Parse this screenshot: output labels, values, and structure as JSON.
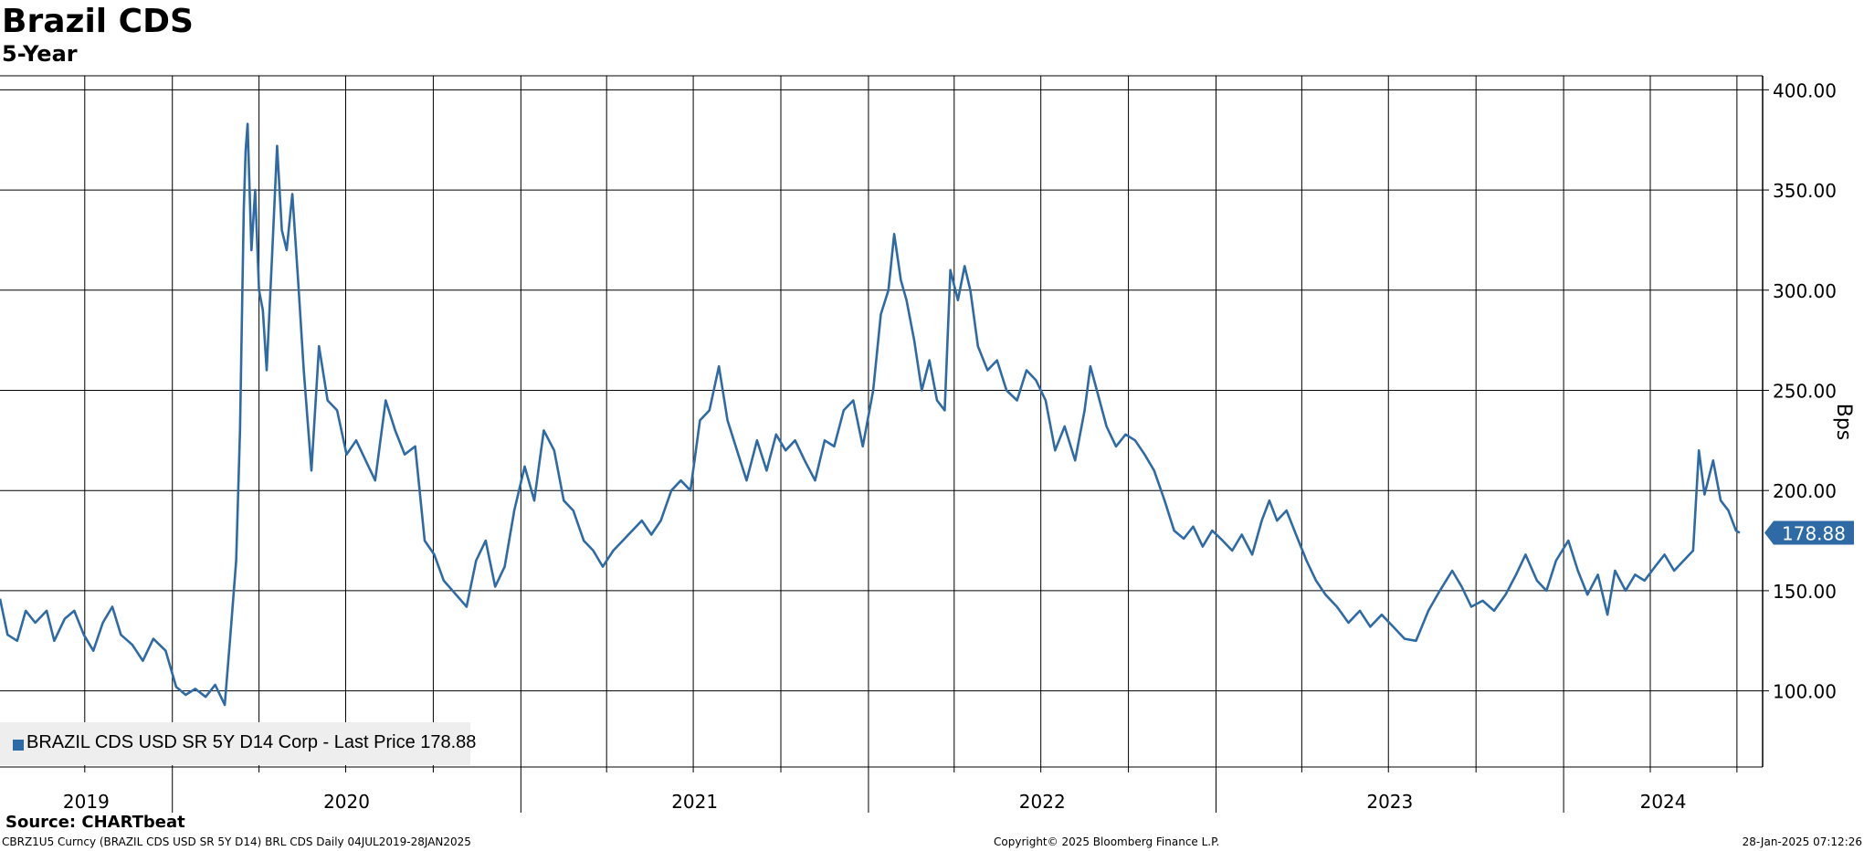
{
  "chart_data": {
    "type": "line",
    "title": "Brazil CDS",
    "subtitle": "5-Year",
    "ylabel": "Bps",
    "ylim": [
      62,
      407
    ],
    "y_ticks": [
      "100.00",
      "150.00",
      "200.00",
      "250.00",
      "300.00",
      "350.00",
      "400.00"
    ],
    "x_ticks": [
      "2019",
      "2020",
      "2021",
      "2022",
      "2023",
      "2024"
    ],
    "grid": true,
    "legend_position": "bottom-left",
    "series": [
      {
        "name": "BRAZIL CDS USD SR 5Y D14 Corp",
        "color": "#2e6aa6",
        "last_price": "178.88",
        "points": [
          [
            "2019-07-04",
            146
          ],
          [
            "2019-07-12",
            128
          ],
          [
            "2019-07-22",
            125
          ],
          [
            "2019-07-31",
            140
          ],
          [
            "2019-08-10",
            134
          ],
          [
            "2019-08-22",
            140
          ],
          [
            "2019-08-30",
            125
          ],
          [
            "2019-09-10",
            136
          ],
          [
            "2019-09-20",
            140
          ],
          [
            "2019-09-30",
            128
          ],
          [
            "2019-10-10",
            120
          ],
          [
            "2019-10-20",
            134
          ],
          [
            "2019-10-30",
            142
          ],
          [
            "2019-11-08",
            128
          ],
          [
            "2019-11-20",
            123
          ],
          [
            "2019-12-01",
            115
          ],
          [
            "2019-12-12",
            126
          ],
          [
            "2019-12-25",
            120
          ],
          [
            "2020-01-05",
            102
          ],
          [
            "2020-01-15",
            98
          ],
          [
            "2020-01-25",
            101
          ],
          [
            "2020-02-05",
            97
          ],
          [
            "2020-02-15",
            103
          ],
          [
            "2020-02-25",
            93
          ],
          [
            "2020-03-02",
            128
          ],
          [
            "2020-03-08",
            165
          ],
          [
            "2020-03-12",
            230
          ],
          [
            "2020-03-16",
            340
          ],
          [
            "2020-03-18",
            370
          ],
          [
            "2020-03-20",
            383
          ],
          [
            "2020-03-24",
            320
          ],
          [
            "2020-03-28",
            350
          ],
          [
            "2020-04-01",
            300
          ],
          [
            "2020-04-05",
            290
          ],
          [
            "2020-04-09",
            260
          ],
          [
            "2020-04-15",
            320
          ],
          [
            "2020-04-20",
            372
          ],
          [
            "2020-04-25",
            330
          ],
          [
            "2020-04-30",
            320
          ],
          [
            "2020-05-06",
            348
          ],
          [
            "2020-05-12",
            305
          ],
          [
            "2020-05-18",
            260
          ],
          [
            "2020-05-26",
            210
          ],
          [
            "2020-06-03",
            272
          ],
          [
            "2020-06-12",
            245
          ],
          [
            "2020-06-22",
            240
          ],
          [
            "2020-07-02",
            218
          ],
          [
            "2020-07-12",
            225
          ],
          [
            "2020-07-22",
            215
          ],
          [
            "2020-08-01",
            205
          ],
          [
            "2020-08-12",
            245
          ],
          [
            "2020-08-22",
            230
          ],
          [
            "2020-09-01",
            218
          ],
          [
            "2020-09-12",
            222
          ],
          [
            "2020-09-22",
            175
          ],
          [
            "2020-10-02",
            168
          ],
          [
            "2020-10-12",
            155
          ],
          [
            "2020-10-25",
            148
          ],
          [
            "2020-11-05",
            142
          ],
          [
            "2020-11-15",
            165
          ],
          [
            "2020-11-25",
            175
          ],
          [
            "2020-12-05",
            152
          ],
          [
            "2020-12-15",
            162
          ],
          [
            "2020-12-25",
            190
          ],
          [
            "2021-01-05",
            212
          ],
          [
            "2021-01-15",
            195
          ],
          [
            "2021-01-25",
            230
          ],
          [
            "2021-02-05",
            220
          ],
          [
            "2021-02-15",
            195
          ],
          [
            "2021-02-25",
            190
          ],
          [
            "2021-03-08",
            175
          ],
          [
            "2021-03-18",
            170
          ],
          [
            "2021-03-28",
            162
          ],
          [
            "2021-04-08",
            170
          ],
          [
            "2021-04-18",
            175
          ],
          [
            "2021-04-28",
            180
          ],
          [
            "2021-05-08",
            185
          ],
          [
            "2021-05-18",
            178
          ],
          [
            "2021-05-28",
            185
          ],
          [
            "2021-06-08",
            200
          ],
          [
            "2021-06-18",
            205
          ],
          [
            "2021-06-28",
            200
          ],
          [
            "2021-07-08",
            235
          ],
          [
            "2021-07-18",
            240
          ],
          [
            "2021-07-28",
            262
          ],
          [
            "2021-08-06",
            235
          ],
          [
            "2021-08-16",
            220
          ],
          [
            "2021-08-26",
            205
          ],
          [
            "2021-09-06",
            225
          ],
          [
            "2021-09-16",
            210
          ],
          [
            "2021-09-26",
            228
          ],
          [
            "2021-10-06",
            220
          ],
          [
            "2021-10-16",
            225
          ],
          [
            "2021-10-26",
            215
          ],
          [
            "2021-11-06",
            205
          ],
          [
            "2021-11-16",
            225
          ],
          [
            "2021-11-26",
            222
          ],
          [
            "2021-12-06",
            240
          ],
          [
            "2021-12-16",
            245
          ],
          [
            "2021-12-26",
            222
          ],
          [
            "2022-01-06",
            250
          ],
          [
            "2022-01-14",
            288
          ],
          [
            "2022-01-22",
            300
          ],
          [
            "2022-01-28",
            328
          ],
          [
            "2022-02-04",
            305
          ],
          [
            "2022-02-10",
            295
          ],
          [
            "2022-02-18",
            275
          ],
          [
            "2022-02-26",
            250
          ],
          [
            "2022-03-06",
            265
          ],
          [
            "2022-03-14",
            245
          ],
          [
            "2022-03-22",
            240
          ],
          [
            "2022-03-28",
            310
          ],
          [
            "2022-04-05",
            295
          ],
          [
            "2022-04-12",
            312
          ],
          [
            "2022-04-18",
            300
          ],
          [
            "2022-04-26",
            272
          ],
          [
            "2022-05-06",
            260
          ],
          [
            "2022-05-16",
            265
          ],
          [
            "2022-05-26",
            250
          ],
          [
            "2022-06-06",
            245
          ],
          [
            "2022-06-16",
            260
          ],
          [
            "2022-06-26",
            255
          ],
          [
            "2022-07-06",
            245
          ],
          [
            "2022-07-16",
            220
          ],
          [
            "2022-07-26",
            232
          ],
          [
            "2022-08-06",
            215
          ],
          [
            "2022-08-16",
            240
          ],
          [
            "2022-08-22",
            262
          ],
          [
            "2022-08-30",
            248
          ],
          [
            "2022-09-08",
            232
          ],
          [
            "2022-09-18",
            222
          ],
          [
            "2022-09-28",
            228
          ],
          [
            "2022-10-08",
            225
          ],
          [
            "2022-10-18",
            218
          ],
          [
            "2022-10-28",
            210
          ],
          [
            "2022-11-08",
            195
          ],
          [
            "2022-11-18",
            180
          ],
          [
            "2022-11-28",
            176
          ],
          [
            "2022-12-08",
            182
          ],
          [
            "2022-12-18",
            172
          ],
          [
            "2022-12-28",
            180
          ],
          [
            "2023-01-08",
            175
          ],
          [
            "2023-01-18",
            170
          ],
          [
            "2023-01-28",
            178
          ],
          [
            "2023-02-08",
            168
          ],
          [
            "2023-02-18",
            185
          ],
          [
            "2023-02-26",
            195
          ],
          [
            "2023-03-06",
            185
          ],
          [
            "2023-03-16",
            190
          ],
          [
            "2023-03-26",
            178
          ],
          [
            "2023-04-06",
            165
          ],
          [
            "2023-04-16",
            155
          ],
          [
            "2023-04-26",
            148
          ],
          [
            "2023-05-08",
            142
          ],
          [
            "2023-05-20",
            134
          ],
          [
            "2023-06-01",
            140
          ],
          [
            "2023-06-12",
            132
          ],
          [
            "2023-06-24",
            138
          ],
          [
            "2023-07-06",
            132
          ],
          [
            "2023-07-18",
            126
          ],
          [
            "2023-07-30",
            125
          ],
          [
            "2023-08-12",
            140
          ],
          [
            "2023-08-24",
            150
          ],
          [
            "2023-09-06",
            160
          ],
          [
            "2023-09-16",
            152
          ],
          [
            "2023-09-26",
            142
          ],
          [
            "2023-10-08",
            145
          ],
          [
            "2023-10-20",
            140
          ],
          [
            "2023-11-01",
            148
          ],
          [
            "2023-11-12",
            158
          ],
          [
            "2023-11-22",
            168
          ],
          [
            "2023-12-04",
            155
          ],
          [
            "2023-12-14",
            150
          ],
          [
            "2023-12-24",
            165
          ],
          [
            "2024-01-06",
            175
          ],
          [
            "2024-01-16",
            160
          ],
          [
            "2024-01-26",
            148
          ],
          [
            "2024-02-06",
            158
          ],
          [
            "2024-02-16",
            138
          ],
          [
            "2024-02-24",
            160
          ],
          [
            "2024-03-06",
            150
          ],
          [
            "2024-03-16",
            158
          ],
          [
            "2024-03-26",
            155
          ],
          [
            "2024-04-06",
            162
          ],
          [
            "2024-04-16",
            168
          ],
          [
            "2024-04-26",
            160
          ],
          [
            "2024-05-06",
            165
          ],
          [
            "2024-05-16",
            170
          ],
          [
            "2024-05-22",
            220
          ],
          [
            "2024-05-28",
            198
          ],
          [
            "2024-06-06",
            215
          ],
          [
            "2024-06-14",
            195
          ],
          [
            "2024-06-22",
            190
          ],
          [
            "2024-06-30",
            180
          ],
          [
            "2024-07-04",
            178.88
          ]
        ]
      }
    ]
  },
  "axis": {
    "ylabel_text": "Bps"
  },
  "legend": {
    "text": "BRAZIL CDS USD SR 5Y D14 Corp - Last Price 178.88",
    "swatch_color": "#2e6aa6"
  },
  "last_price_tag": "178.88",
  "footer": {
    "source": "Source: CHARTbeat",
    "left": "CBRZ1U5 Curncy (BRAZIL CDS USD SR 5Y D14) BRL CDS  Daily 04JUL2019-28JAN2025",
    "center": "Copyright© 2025 Bloomberg Finance L.P.",
    "right": "28-Jan-2025 07:12:26"
  }
}
